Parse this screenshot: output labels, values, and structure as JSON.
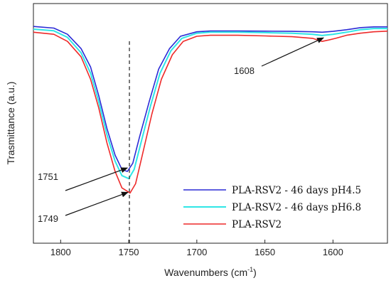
{
  "chart_data": {
    "type": "line",
    "title": "",
    "xlabel": "Wavenumbers (cm",
    "xlabel_sup": "-1",
    "xlabel_close": ")",
    "ylabel": "Trasmittance (a.u.)",
    "xlim": [
      1820,
      1560
    ],
    "x_reversed": true,
    "ylim": [
      0,
      1
    ],
    "y_ticks_labeled": false,
    "grid": false,
    "legend_position": "bottom-right",
    "x_ticks": [
      {
        "value": 1800,
        "label": "1800"
      },
      {
        "value": 1750,
        "label": "1750"
      },
      {
        "value": 1700,
        "label": "1700"
      },
      {
        "value": 1650,
        "label": "1650"
      },
      {
        "value": 1600,
        "label": "1600"
      }
    ],
    "series": [
      {
        "name": "PLA-RSV2 - 46 days pH4.5",
        "color": "#2b2bd6",
        "x": [
          1820,
          1805,
          1795,
          1785,
          1778,
          1772,
          1766,
          1760,
          1755,
          1751,
          1747,
          1742,
          1735,
          1728,
          1720,
          1712,
          1700,
          1690,
          1670,
          1650,
          1630,
          1615,
          1608,
          1600,
          1590,
          1580,
          1570,
          1560
        ],
        "y": [
          0.968,
          0.96,
          0.93,
          0.86,
          0.77,
          0.63,
          0.47,
          0.34,
          0.27,
          0.26,
          0.3,
          0.43,
          0.6,
          0.76,
          0.86,
          0.92,
          0.942,
          0.946,
          0.946,
          0.945,
          0.944,
          0.942,
          0.94,
          0.944,
          0.952,
          0.962,
          0.966,
          0.966
        ]
      },
      {
        "name": "PLA-RSV2 - 46 days pH6.8",
        "color": "#2fe6e6",
        "x": [
          1820,
          1805,
          1795,
          1785,
          1778,
          1772,
          1766,
          1760,
          1755,
          1750,
          1746,
          1741,
          1734,
          1727,
          1719,
          1711,
          1700,
          1690,
          1670,
          1650,
          1630,
          1615,
          1608,
          1600,
          1590,
          1580,
          1570,
          1560
        ],
        "y": [
          0.955,
          0.947,
          0.915,
          0.84,
          0.74,
          0.6,
          0.44,
          0.31,
          0.24,
          0.225,
          0.27,
          0.4,
          0.58,
          0.74,
          0.85,
          0.91,
          0.935,
          0.94,
          0.94,
          0.938,
          0.935,
          0.93,
          0.924,
          0.93,
          0.94,
          0.952,
          0.958,
          0.958
        ]
      },
      {
        "name": "PLA-RSV2",
        "color": "#ee2a2a",
        "x": [
          1820,
          1805,
          1795,
          1785,
          1778,
          1772,
          1766,
          1760,
          1755,
          1749,
          1745,
          1740,
          1733,
          1726,
          1718,
          1710,
          1700,
          1690,
          1670,
          1650,
          1630,
          1615,
          1608,
          1603,
          1598,
          1590,
          1580,
          1570,
          1560
        ],
        "y": [
          0.94,
          0.93,
          0.895,
          0.82,
          0.71,
          0.57,
          0.4,
          0.26,
          0.18,
          0.155,
          0.2,
          0.34,
          0.54,
          0.71,
          0.83,
          0.895,
          0.92,
          0.925,
          0.925,
          0.922,
          0.918,
          0.91,
          0.895,
          0.902,
          0.91,
          0.925,
          0.935,
          0.942,
          0.945
        ]
      }
    ],
    "reference_line": {
      "x": 1749.5,
      "style": "dashed"
    },
    "annotations": [
      {
        "text": "1751",
        "target_x": 1751,
        "target_series": 0
      },
      {
        "text": "1749",
        "target_x": 1749,
        "target_series": 2
      },
      {
        "text": "1608",
        "target_x": 1608,
        "target_series": 2
      }
    ]
  }
}
